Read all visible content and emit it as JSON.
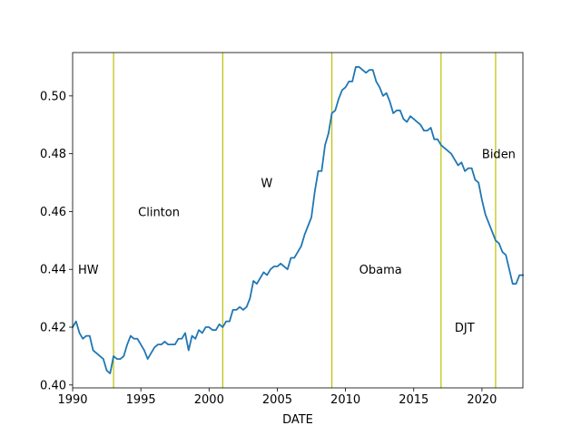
{
  "chart_data": {
    "type": "line",
    "title": "",
    "xlabel": "DATE",
    "ylabel": "",
    "xlim": [
      1990,
      2023
    ],
    "ylim": [
      0.399,
      0.515
    ],
    "xticks": [
      1990,
      1995,
      2000,
      2005,
      2010,
      2015,
      2020
    ],
    "xtick_labels": [
      "1990",
      "1995",
      "2000",
      "2005",
      "2010",
      "2015",
      "2020"
    ],
    "yticks": [
      0.4,
      0.42,
      0.44,
      0.46,
      0.48,
      0.5
    ],
    "ytick_labels": [
      "0.40",
      "0.42",
      "0.44",
      "0.46",
      "0.48",
      "0.50"
    ],
    "grid": false,
    "series": [
      {
        "color": "#1f77b4",
        "x": [
          1990.0,
          1990.25,
          1990.5,
          1990.75,
          1991.0,
          1991.25,
          1991.5,
          1991.75,
          1992.0,
          1992.25,
          1992.5,
          1992.75,
          1993.0,
          1993.25,
          1993.5,
          1993.75,
          1994.0,
          1994.25,
          1994.5,
          1994.75,
          1995.0,
          1995.25,
          1995.5,
          1995.75,
          1996.0,
          1996.25,
          1996.5,
          1996.75,
          1997.0,
          1997.25,
          1997.5,
          1997.75,
          1998.0,
          1998.25,
          1998.5,
          1998.75,
          1999.0,
          1999.25,
          1999.5,
          1999.75,
          2000.0,
          2000.25,
          2000.5,
          2000.75,
          2001.0,
          2001.25,
          2001.5,
          2001.75,
          2002.0,
          2002.25,
          2002.5,
          2002.75,
          2003.0,
          2003.25,
          2003.5,
          2003.75,
          2004.0,
          2004.25,
          2004.5,
          2004.75,
          2005.0,
          2005.25,
          2005.5,
          2005.75,
          2006.0,
          2006.25,
          2006.5,
          2006.75,
          2007.0,
          2007.25,
          2007.5,
          2007.75,
          2008.0,
          2008.25,
          2008.5,
          2008.75,
          2009.0,
          2009.25,
          2009.5,
          2009.75,
          2010.0,
          2010.25,
          2010.5,
          2010.75,
          2011.0,
          2011.25,
          2011.5,
          2011.75,
          2012.0,
          2012.25,
          2012.5,
          2012.75,
          2013.0,
          2013.25,
          2013.5,
          2013.75,
          2014.0,
          2014.25,
          2014.5,
          2014.75,
          2015.0,
          2015.25,
          2015.5,
          2015.75,
          2016.0,
          2016.25,
          2016.5,
          2016.75,
          2017.0,
          2017.25,
          2017.5,
          2017.75,
          2018.0,
          2018.25,
          2018.5,
          2018.75,
          2019.0,
          2019.25,
          2019.5,
          2019.75,
          2020.0,
          2020.25,
          2020.5,
          2020.75,
          2021.0,
          2021.25,
          2021.5,
          2021.75,
          2022.0,
          2022.25,
          2022.5,
          2022.75,
          2023.0
        ],
        "values": [
          0.42,
          0.422,
          0.418,
          0.416,
          0.417,
          0.417,
          0.412,
          0.411,
          0.41,
          0.409,
          0.405,
          0.404,
          0.41,
          0.409,
          0.409,
          0.41,
          0.414,
          0.417,
          0.416,
          0.416,
          0.414,
          0.412,
          0.409,
          0.411,
          0.413,
          0.414,
          0.414,
          0.415,
          0.414,
          0.414,
          0.414,
          0.416,
          0.416,
          0.418,
          0.412,
          0.417,
          0.416,
          0.419,
          0.418,
          0.42,
          0.42,
          0.419,
          0.419,
          0.421,
          0.42,
          0.422,
          0.422,
          0.426,
          0.426,
          0.427,
          0.426,
          0.427,
          0.43,
          0.436,
          0.435,
          0.437,
          0.439,
          0.438,
          0.44,
          0.441,
          0.441,
          0.442,
          0.441,
          0.44,
          0.444,
          0.444,
          0.446,
          0.448,
          0.452,
          0.455,
          0.458,
          0.467,
          0.474,
          0.474,
          0.483,
          0.487,
          0.494,
          0.495,
          0.499,
          0.502,
          0.503,
          0.505,
          0.505,
          0.51,
          0.51,
          0.509,
          0.508,
          0.509,
          0.509,
          0.505,
          0.503,
          0.5,
          0.501,
          0.498,
          0.494,
          0.495,
          0.495,
          0.492,
          0.491,
          0.493,
          0.492,
          0.491,
          0.49,
          0.488,
          0.488,
          0.489,
          0.485,
          0.485,
          0.483,
          0.482,
          0.481,
          0.48,
          0.478,
          0.476,
          0.477,
          0.474,
          0.475,
          0.475,
          0.471,
          0.47,
          0.464,
          0.459,
          0.456,
          0.453,
          0.45,
          0.449,
          0.446,
          0.445,
          0.44,
          0.435,
          0.435,
          0.438,
          0.438
        ]
      }
    ],
    "vlines": {
      "color": "#bfbf00",
      "x": [
        1993,
        2001,
        2009,
        2017,
        2021
      ]
    },
    "annotations": [
      {
        "text": "HW",
        "x": 1990.4,
        "y": 0.44
      },
      {
        "text": "Clinton",
        "x": 1994.8,
        "y": 0.46
      },
      {
        "text": "W",
        "x": 2003.8,
        "y": 0.47
      },
      {
        "text": "Obama",
        "x": 2011.0,
        "y": 0.44
      },
      {
        "text": "DJT",
        "x": 2018.0,
        "y": 0.42
      },
      {
        "text": "Biden",
        "x": 2020.0,
        "y": 0.48
      }
    ]
  }
}
